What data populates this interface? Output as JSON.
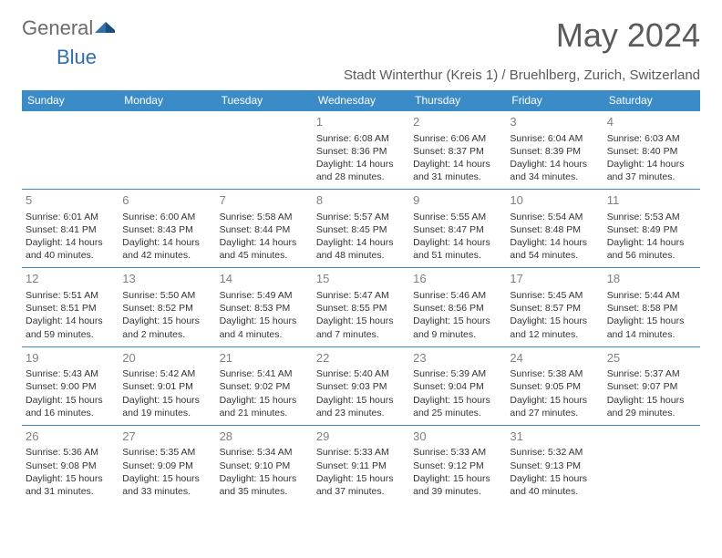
{
  "logo": {
    "text_gray": "General",
    "text_blue": "Blue"
  },
  "title": "May 2024",
  "subtitle": "Stadt Winterthur (Kreis 1) / Bruehlberg, Zurich, Switzerland",
  "colors": {
    "header_bg": "#3b8bc7",
    "header_text": "#ffffff",
    "border": "#3b8bc7",
    "title_color": "#5a5a5a",
    "daynum_color": "#808080",
    "body_text": "#333333",
    "logo_gray": "#6b6b6b",
    "logo_blue": "#2f6fad",
    "background": "#ffffff"
  },
  "typography": {
    "title_fontsize": 36,
    "subtitle_fontsize": 15,
    "dayheader_fontsize": 12,
    "daynum_fontsize": 13,
    "cell_fontsize": 10.5
  },
  "day_headers": [
    "Sunday",
    "Monday",
    "Tuesday",
    "Wednesday",
    "Thursday",
    "Friday",
    "Saturday"
  ],
  "weeks": [
    [
      null,
      null,
      null,
      {
        "n": "1",
        "sr": "6:08 AM",
        "ss": "8:36 PM",
        "dl": "14 hours and 28 minutes."
      },
      {
        "n": "2",
        "sr": "6:06 AM",
        "ss": "8:37 PM",
        "dl": "14 hours and 31 minutes."
      },
      {
        "n": "3",
        "sr": "6:04 AM",
        "ss": "8:39 PM",
        "dl": "14 hours and 34 minutes."
      },
      {
        "n": "4",
        "sr": "6:03 AM",
        "ss": "8:40 PM",
        "dl": "14 hours and 37 minutes."
      }
    ],
    [
      {
        "n": "5",
        "sr": "6:01 AM",
        "ss": "8:41 PM",
        "dl": "14 hours and 40 minutes."
      },
      {
        "n": "6",
        "sr": "6:00 AM",
        "ss": "8:43 PM",
        "dl": "14 hours and 42 minutes."
      },
      {
        "n": "7",
        "sr": "5:58 AM",
        "ss": "8:44 PM",
        "dl": "14 hours and 45 minutes."
      },
      {
        "n": "8",
        "sr": "5:57 AM",
        "ss": "8:45 PM",
        "dl": "14 hours and 48 minutes."
      },
      {
        "n": "9",
        "sr": "5:55 AM",
        "ss": "8:47 PM",
        "dl": "14 hours and 51 minutes."
      },
      {
        "n": "10",
        "sr": "5:54 AM",
        "ss": "8:48 PM",
        "dl": "14 hours and 54 minutes."
      },
      {
        "n": "11",
        "sr": "5:53 AM",
        "ss": "8:49 PM",
        "dl": "14 hours and 56 minutes."
      }
    ],
    [
      {
        "n": "12",
        "sr": "5:51 AM",
        "ss": "8:51 PM",
        "dl": "14 hours and 59 minutes."
      },
      {
        "n": "13",
        "sr": "5:50 AM",
        "ss": "8:52 PM",
        "dl": "15 hours and 2 minutes."
      },
      {
        "n": "14",
        "sr": "5:49 AM",
        "ss": "8:53 PM",
        "dl": "15 hours and 4 minutes."
      },
      {
        "n": "15",
        "sr": "5:47 AM",
        "ss": "8:55 PM",
        "dl": "15 hours and 7 minutes."
      },
      {
        "n": "16",
        "sr": "5:46 AM",
        "ss": "8:56 PM",
        "dl": "15 hours and 9 minutes."
      },
      {
        "n": "17",
        "sr": "5:45 AM",
        "ss": "8:57 PM",
        "dl": "15 hours and 12 minutes."
      },
      {
        "n": "18",
        "sr": "5:44 AM",
        "ss": "8:58 PM",
        "dl": "15 hours and 14 minutes."
      }
    ],
    [
      {
        "n": "19",
        "sr": "5:43 AM",
        "ss": "9:00 PM",
        "dl": "15 hours and 16 minutes."
      },
      {
        "n": "20",
        "sr": "5:42 AM",
        "ss": "9:01 PM",
        "dl": "15 hours and 19 minutes."
      },
      {
        "n": "21",
        "sr": "5:41 AM",
        "ss": "9:02 PM",
        "dl": "15 hours and 21 minutes."
      },
      {
        "n": "22",
        "sr": "5:40 AM",
        "ss": "9:03 PM",
        "dl": "15 hours and 23 minutes."
      },
      {
        "n": "23",
        "sr": "5:39 AM",
        "ss": "9:04 PM",
        "dl": "15 hours and 25 minutes."
      },
      {
        "n": "24",
        "sr": "5:38 AM",
        "ss": "9:05 PM",
        "dl": "15 hours and 27 minutes."
      },
      {
        "n": "25",
        "sr": "5:37 AM",
        "ss": "9:07 PM",
        "dl": "15 hours and 29 minutes."
      }
    ],
    [
      {
        "n": "26",
        "sr": "5:36 AM",
        "ss": "9:08 PM",
        "dl": "15 hours and 31 minutes."
      },
      {
        "n": "27",
        "sr": "5:35 AM",
        "ss": "9:09 PM",
        "dl": "15 hours and 33 minutes."
      },
      {
        "n": "28",
        "sr": "5:34 AM",
        "ss": "9:10 PM",
        "dl": "15 hours and 35 minutes."
      },
      {
        "n": "29",
        "sr": "5:33 AM",
        "ss": "9:11 PM",
        "dl": "15 hours and 37 minutes."
      },
      {
        "n": "30",
        "sr": "5:33 AM",
        "ss": "9:12 PM",
        "dl": "15 hours and 39 minutes."
      },
      {
        "n": "31",
        "sr": "5:32 AM",
        "ss": "9:13 PM",
        "dl": "15 hours and 40 minutes."
      },
      null
    ]
  ],
  "labels": {
    "sunrise": "Sunrise:",
    "sunset": "Sunset:",
    "daylight": "Daylight:"
  }
}
